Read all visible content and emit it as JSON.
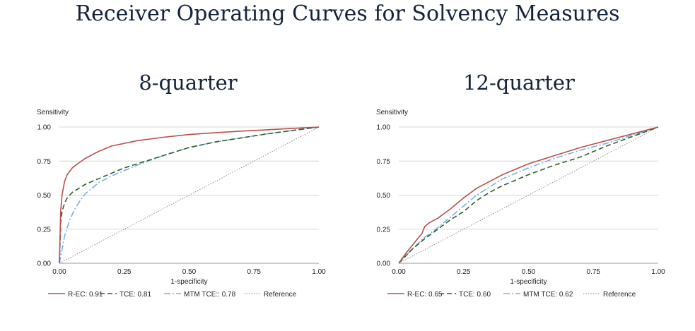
{
  "title": "Receiver Operating Curves for Solvency Measures",
  "colors": {
    "r_ec": "#b8504b",
    "tce": "#2f5f2a",
    "mtm_tce": "#74b3e0",
    "reference": "#8a8a8a",
    "grid": "#d6d6d6",
    "title": "#14233a"
  },
  "chart_data": [
    {
      "type": "line",
      "title": "8-quarter",
      "xlabel": "1-specificity",
      "ylabel": "Sensitivity",
      "xlim": [
        0,
        1
      ],
      "ylim": [
        0,
        1
      ],
      "xticks": [
        "0.00",
        "0.25",
        "0.50",
        "0.75",
        "1.00"
      ],
      "yticks": [
        "0.00",
        "0.25",
        "0.50",
        "0.75",
        "1.00"
      ],
      "grid": "horizontal",
      "legend": "bottom",
      "series": [
        {
          "name": "R-EC: 0.91",
          "style": "solid",
          "x": [
            0,
            0.005,
            0.01,
            0.02,
            0.03,
            0.05,
            0.07,
            0.1,
            0.15,
            0.2,
            0.3,
            0.4,
            0.5,
            0.6,
            0.7,
            0.8,
            0.9,
            1.0
          ],
          "y": [
            0,
            0.38,
            0.5,
            0.6,
            0.65,
            0.7,
            0.73,
            0.77,
            0.82,
            0.86,
            0.9,
            0.925,
            0.945,
            0.958,
            0.97,
            0.98,
            0.99,
            1.0
          ]
        },
        {
          "name": "TCE: 0.81",
          "style": "dashed",
          "x": [
            0,
            0.005,
            0.01,
            0.02,
            0.03,
            0.05,
            0.1,
            0.15,
            0.2,
            0.25,
            0.3,
            0.4,
            0.5,
            0.6,
            0.7,
            0.8,
            0.9,
            1.0
          ],
          "y": [
            0,
            0.3,
            0.38,
            0.44,
            0.48,
            0.52,
            0.58,
            0.62,
            0.66,
            0.7,
            0.73,
            0.79,
            0.85,
            0.89,
            0.92,
            0.95,
            0.975,
            1.0
          ]
        },
        {
          "name": "MTM TCE:: 0.78",
          "style": "dashdot",
          "x": [
            0,
            0.01,
            0.02,
            0.04,
            0.06,
            0.08,
            0.1,
            0.15,
            0.2,
            0.25,
            0.3,
            0.4,
            0.5,
            0.6,
            0.7,
            0.8,
            0.9,
            1.0
          ],
          "y": [
            0,
            0.1,
            0.2,
            0.32,
            0.4,
            0.46,
            0.51,
            0.59,
            0.64,
            0.68,
            0.72,
            0.79,
            0.85,
            0.89,
            0.92,
            0.95,
            0.975,
            1.0
          ]
        },
        {
          "name": "Reference",
          "style": "dotted",
          "x": [
            0,
            1
          ],
          "y": [
            0,
            1
          ]
        }
      ]
    },
    {
      "type": "line",
      "title": "12-quarter",
      "xlabel": "1-specificity",
      "ylabel": "Sensitivity",
      "xlim": [
        0,
        1
      ],
      "ylim": [
        0,
        1
      ],
      "xticks": [
        "0.00",
        "0.25",
        "0.50",
        "0.75",
        "1.00"
      ],
      "yticks": [
        "0.00",
        "0.25",
        "0.50",
        "0.75",
        "1.00"
      ],
      "grid": "horizontal",
      "legend": "bottom",
      "series": [
        {
          "name": "R-EC: 0.65",
          "style": "solid",
          "x": [
            0,
            0.03,
            0.06,
            0.09,
            0.1,
            0.12,
            0.15,
            0.2,
            0.25,
            0.3,
            0.4,
            0.5,
            0.6,
            0.7,
            0.8,
            0.9,
            1.0
          ],
          "y": [
            0,
            0.08,
            0.15,
            0.22,
            0.27,
            0.3,
            0.33,
            0.4,
            0.48,
            0.55,
            0.65,
            0.73,
            0.79,
            0.85,
            0.9,
            0.95,
            1.0
          ]
        },
        {
          "name": "TCE: 0.60",
          "style": "dashed",
          "x": [
            0,
            0.05,
            0.1,
            0.15,
            0.2,
            0.25,
            0.3,
            0.35,
            0.4,
            0.5,
            0.6,
            0.7,
            0.8,
            0.9,
            1.0
          ],
          "y": [
            0,
            0.1,
            0.18,
            0.25,
            0.32,
            0.38,
            0.46,
            0.52,
            0.57,
            0.65,
            0.72,
            0.78,
            0.86,
            0.93,
            1.0
          ]
        },
        {
          "name": "MTM TCE: 0.62",
          "style": "dashdot",
          "x": [
            0,
            0.05,
            0.1,
            0.15,
            0.2,
            0.25,
            0.3,
            0.35,
            0.4,
            0.5,
            0.6,
            0.7,
            0.8,
            0.9,
            1.0
          ],
          "y": [
            0,
            0.1,
            0.19,
            0.26,
            0.34,
            0.42,
            0.5,
            0.56,
            0.62,
            0.7,
            0.77,
            0.83,
            0.88,
            0.94,
            1.0
          ]
        },
        {
          "name": "Reference",
          "style": "dotted",
          "x": [
            0,
            1
          ],
          "y": [
            0,
            1
          ]
        }
      ]
    }
  ]
}
